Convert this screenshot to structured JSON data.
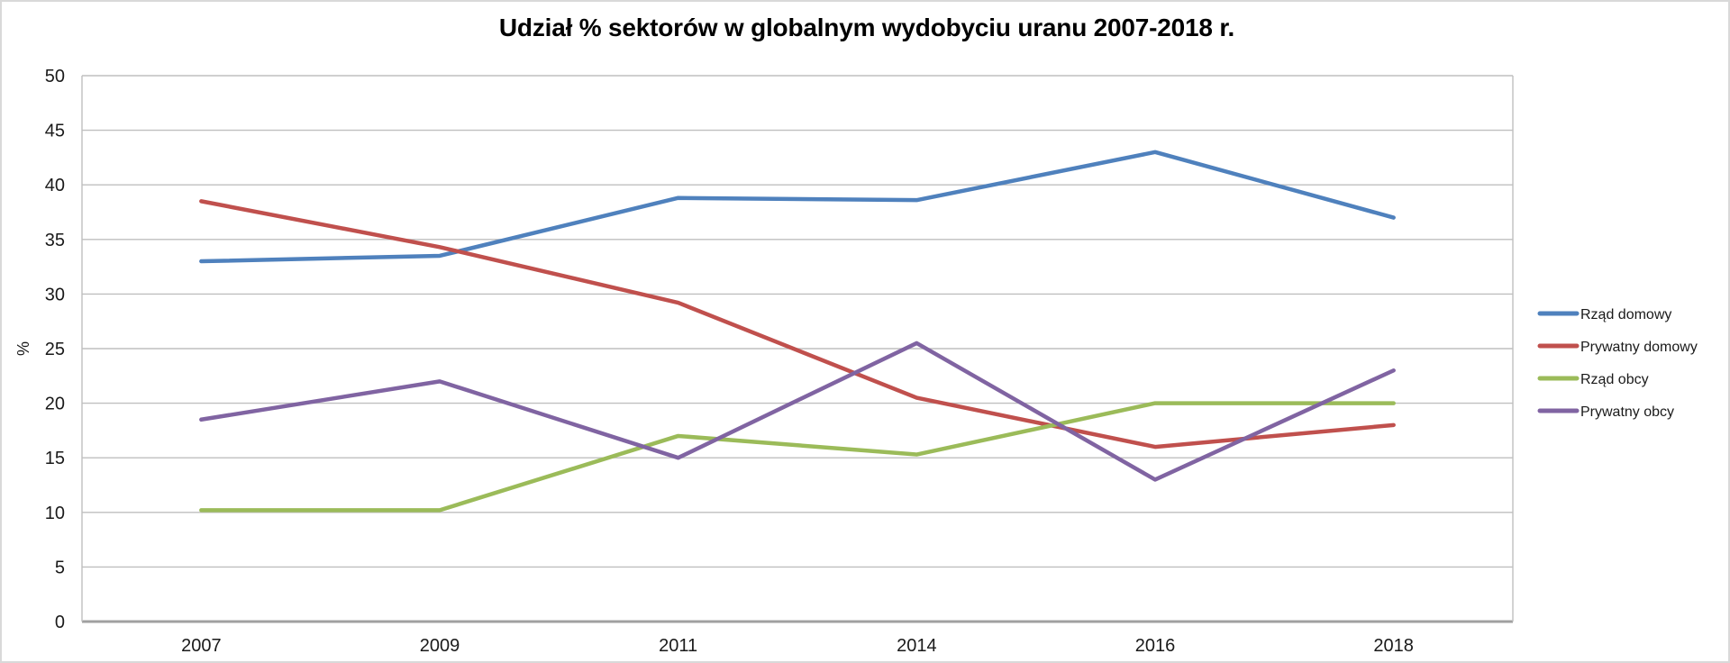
{
  "chart_data": {
    "type": "line",
    "title": "Udział % sektorów w globalnym wydobyciu uranu 2007-2018 r.",
    "ylabel": "%",
    "xlabel": "",
    "categories": [
      "2007",
      "2009",
      "2011",
      "2014",
      "2016",
      "2018"
    ],
    "series": [
      {
        "name": "Rząd domowy",
        "color": "#4F81BD",
        "values": [
          33,
          33.5,
          38.8,
          38.6,
          43,
          37
        ]
      },
      {
        "name": "Prywatny domowy",
        "color": "#C0504D",
        "values": [
          38.5,
          34.3,
          29.2,
          20.5,
          16,
          18
        ]
      },
      {
        "name": "Rząd obcy",
        "color": "#9BBB59",
        "values": [
          10.2,
          10.2,
          17,
          15.3,
          20,
          20
        ]
      },
      {
        "name": "Prywatny obcy",
        "color": "#8064A2",
        "values": [
          18.5,
          22,
          15,
          25.5,
          13,
          23
        ]
      }
    ],
    "ylim": [
      0,
      50
    ],
    "ytick_step": 5,
    "grid": true,
    "legend_position": "right",
    "colors": {
      "gridline": "#bfbfbf",
      "axis_line": "#a0a0a0",
      "text": "#1a1a1a",
      "background": "#ffffff"
    }
  }
}
